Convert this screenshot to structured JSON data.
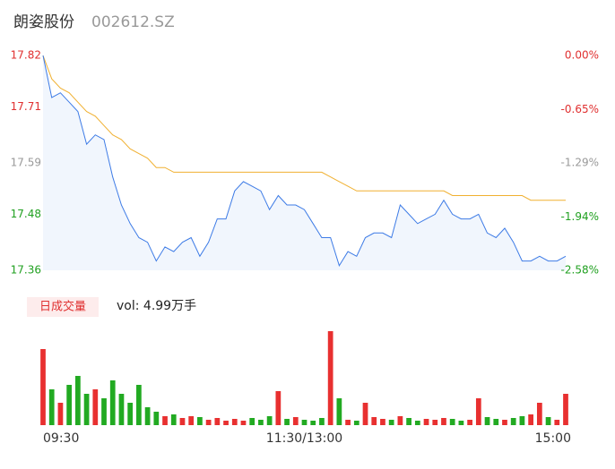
{
  "chart_data": {
    "type": "intraday",
    "title": "朗姿股份",
    "subtitle": "002612.SZ",
    "x": [
      0,
      4,
      8,
      12,
      16,
      20,
      24,
      28,
      32,
      36,
      40,
      44,
      48,
      52,
      56,
      60,
      64,
      68,
      72,
      76,
      80,
      84,
      88,
      92,
      96,
      100,
      104,
      108,
      112,
      116,
      120,
      124,
      128,
      132,
      136,
      140,
      144,
      148,
      152,
      156,
      160,
      164,
      168,
      172,
      176,
      180,
      184,
      188,
      192,
      196,
      200,
      204,
      208,
      212,
      216,
      220,
      224,
      228,
      232,
      236,
      240
    ],
    "xlim": [
      0,
      240
    ],
    "xticks": [
      {
        "value": 0,
        "label": "09:30"
      },
      {
        "value": 120,
        "label": "11:30/13:00"
      },
      {
        "value": 240,
        "label": "15:00"
      }
    ],
    "series": [
      {
        "name": "price",
        "color": "#3d7be6",
        "values": [
          17.82,
          17.73,
          17.74,
          17.72,
          17.7,
          17.63,
          17.65,
          17.64,
          17.56,
          17.5,
          17.46,
          17.43,
          17.42,
          17.38,
          17.41,
          17.4,
          17.42,
          17.43,
          17.39,
          17.42,
          17.47,
          17.47,
          17.53,
          17.55,
          17.54,
          17.53,
          17.49,
          17.52,
          17.5,
          17.5,
          17.49,
          17.46,
          17.43,
          17.43,
          17.37,
          17.4,
          17.39,
          17.43,
          17.44,
          17.44,
          17.43,
          17.5,
          17.48,
          17.46,
          17.47,
          17.48,
          17.51,
          17.48,
          17.47,
          17.47,
          17.48,
          17.44,
          17.43,
          17.45,
          17.42,
          17.38,
          17.38,
          17.39,
          17.38,
          17.38,
          17.39
        ]
      },
      {
        "name": "average",
        "color": "#f0b030",
        "values": [
          17.82,
          17.77,
          17.75,
          17.74,
          17.72,
          17.7,
          17.69,
          17.67,
          17.65,
          17.64,
          17.62,
          17.61,
          17.6,
          17.58,
          17.58,
          17.57,
          17.57,
          17.57,
          17.57,
          17.57,
          17.57,
          17.57,
          17.57,
          17.57,
          17.57,
          17.57,
          17.57,
          17.57,
          17.57,
          17.57,
          17.57,
          17.57,
          17.57,
          17.56,
          17.55,
          17.54,
          17.53,
          17.53,
          17.53,
          17.53,
          17.53,
          17.53,
          17.53,
          17.53,
          17.53,
          17.53,
          17.53,
          17.52,
          17.52,
          17.52,
          17.52,
          17.52,
          17.52,
          17.52,
          17.52,
          17.52,
          17.51,
          17.51,
          17.51,
          17.51,
          17.51
        ]
      }
    ],
    "ylim": [
      17.36,
      17.82
    ],
    "yticks": [
      17.82,
      17.71,
      17.59,
      17.48,
      17.36
    ],
    "y2lim": [
      -2.58,
      0
    ],
    "y2ticks": [
      {
        "value": 0,
        "label": "0.00%"
      },
      {
        "value": -0.65,
        "label": "-0.65%"
      },
      {
        "value": -1.29,
        "label": "-1.29%"
      },
      {
        "value": -1.94,
        "label": "-1.94%"
      },
      {
        "value": -2.58,
        "label": "-2.58%"
      }
    ],
    "tick_colors": [
      "#e03030",
      "#e03030",
      "#999999",
      "#20a020",
      "#20a020"
    ],
    "grid": false,
    "volume": {
      "label": "日成交量",
      "summary": "vol: 4.99万手",
      "ylim": [
        0,
        110
      ],
      "up_color": "#e83030",
      "down_color": "#22aa22",
      "values": [
        85,
        40,
        25,
        45,
        55,
        35,
        40,
        30,
        50,
        35,
        25,
        45,
        20,
        15,
        10,
        12,
        8,
        10,
        9,
        6,
        8,
        5,
        7,
        5,
        8,
        6,
        10,
        38,
        7,
        9,
        6,
        5,
        8,
        105,
        30,
        6,
        5,
        25,
        9,
        7,
        6,
        10,
        8,
        5,
        7,
        6,
        8,
        7,
        5,
        6,
        30,
        9,
        7,
        6,
        8,
        10,
        12,
        25,
        9,
        6,
        35
      ]
    }
  }
}
